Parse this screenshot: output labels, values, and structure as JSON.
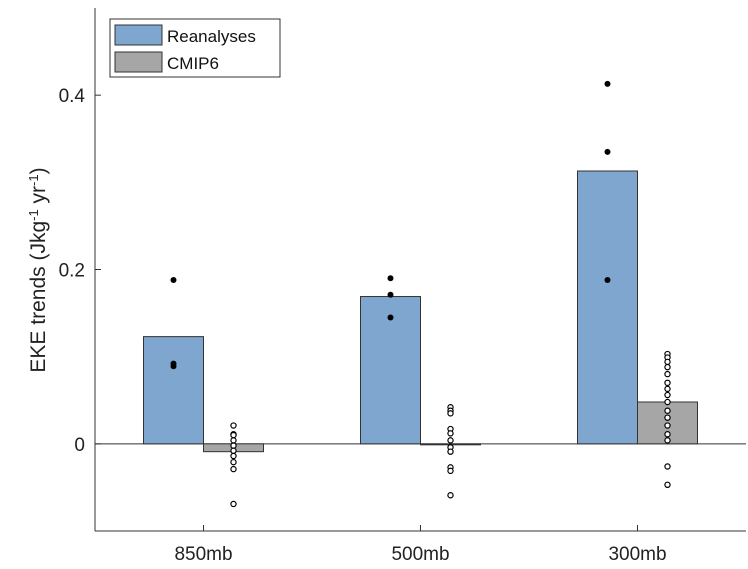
{
  "chart_data": {
    "type": "bar",
    "categories": [
      "850mb",
      "500mb",
      "300mb"
    ],
    "series": [
      {
        "name": "Reanalyses",
        "color": "#7ea6cf",
        "values": [
          0.123,
          0.169,
          0.313
        ],
        "points": [
          [
            0.188,
            0.092,
            0.089
          ],
          [
            0.19,
            0.171,
            0.145
          ],
          [
            0.413,
            0.335,
            0.188
          ]
        ],
        "point_style": "filled"
      },
      {
        "name": "CMIP6",
        "color": "#a6a6a6",
        "values": [
          -0.009,
          0.0,
          0.048
        ],
        "points": [
          [
            0.021,
            0.011,
            0.01,
            0.004,
            -0.002,
            -0.008,
            -0.014,
            -0.021,
            -0.029,
            -0.069
          ],
          [
            0.042,
            0.038,
            0.035,
            0.017,
            0.012,
            0.004,
            -0.004,
            -0.009,
            -0.027,
            -0.031,
            -0.059
          ],
          [
            0.103,
            0.099,
            0.094,
            0.088,
            0.08,
            0.07,
            0.063,
            0.056,
            0.048,
            0.038,
            0.03,
            0.021,
            0.011,
            0.004,
            -0.026,
            -0.047
          ]
        ],
        "point_style": "hollow"
      }
    ],
    "ylabel": "EKE trends (Jkg",
    "ylabel_sup1": "-1",
    "ylabel_mid": " yr",
    "ylabel_sup2": "-1",
    "ylabel_end": ")",
    "yticks": [
      0,
      0.2,
      0.4
    ],
    "ytick_labels": [
      "0",
      "0.2",
      "0.4"
    ],
    "ylim": [
      -0.1,
      0.5
    ],
    "grid": false,
    "legend_position": "top-left"
  }
}
